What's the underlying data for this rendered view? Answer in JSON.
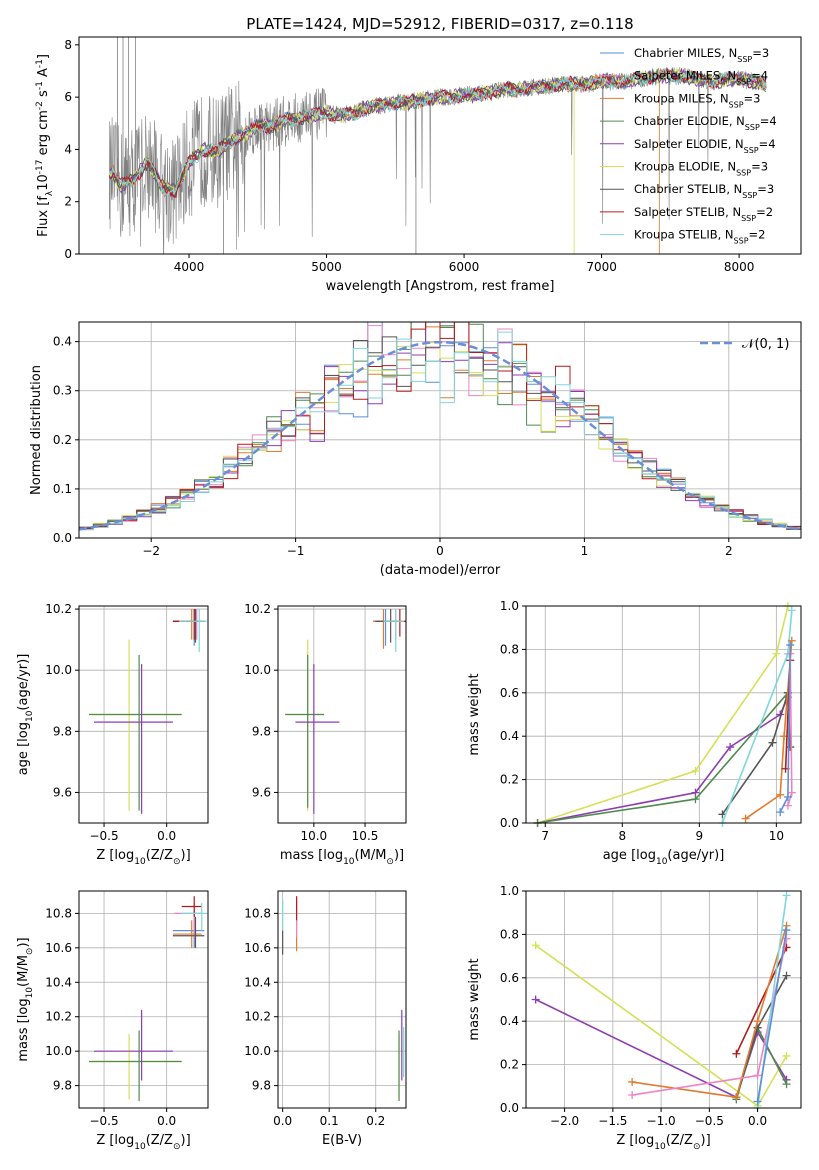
{
  "title": "PLATE=1424, MJD=52912, FIBERID=0317, z=0.118",
  "colors": {
    "Chabrier MILES": "#5b8fd9",
    "Salpeter MILES": "#ee82c3",
    "Kroupa MILES": "#e07b2f",
    "Chabrier ELODIE": "#4f8a4f",
    "Salpeter ELODIE": "#8e3db0",
    "Kroupa ELODIE": "#d4e157",
    "Chabrier STELIB": "#555555",
    "Salpeter STELIB": "#b01c1c",
    "Kroupa STELIB": "#7fd6dc",
    "data": "#808080",
    "normal": "#6b8fd6"
  },
  "legend_spectrum": [
    {
      "model": "Chabrier MILES",
      "n": "3"
    },
    {
      "model": "Salpeter MILES",
      "n": "4"
    },
    {
      "model": "Kroupa MILES",
      "n": "3"
    },
    {
      "model": "Chabrier ELODIE",
      "n": "4"
    },
    {
      "model": "Salpeter ELODIE",
      "n": "4"
    },
    {
      "model": "Kroupa ELODIE",
      "n": "3"
    },
    {
      "model": "Chabrier STELIB",
      "n": "3"
    },
    {
      "model": "Salpeter STELIB",
      "n": "2"
    },
    {
      "model": "Kroupa STELIB",
      "n": "2"
    }
  ],
  "chart_data": [
    {
      "id": "spectrum",
      "type": "line",
      "xlabel": "wavelength [Angstrom, rest frame]",
      "ylabel": "Flux [f$_{\\lambda}$10$^{-17}$ erg cm$^{-2}$ s$^{-1}$ A$^{-1}$]",
      "xlim": [
        3200,
        8450
      ],
      "ylim": [
        0,
        8.3
      ],
      "xticks": [
        4000,
        5000,
        6000,
        7000,
        8000
      ],
      "yticks": [
        0,
        2,
        4,
        6,
        8
      ],
      "model_continuum": [
        [
          3450,
          3.1
        ],
        [
          3500,
          2.6
        ],
        [
          3600,
          2.9
        ],
        [
          3700,
          3.5
        ],
        [
          3800,
          2.6
        ],
        [
          3900,
          2.4
        ],
        [
          4000,
          3.5
        ],
        [
          4100,
          4.0
        ],
        [
          4200,
          3.9
        ],
        [
          4300,
          4.3
        ],
        [
          4400,
          4.6
        ],
        [
          4500,
          4.9
        ],
        [
          4600,
          4.9
        ],
        [
          4700,
          5.1
        ],
        [
          4800,
          5.2
        ],
        [
          4900,
          5.3
        ],
        [
          5000,
          5.4
        ],
        [
          5100,
          5.3
        ],
        [
          5200,
          5.4
        ],
        [
          5300,
          5.6
        ],
        [
          5400,
          5.7
        ],
        [
          5500,
          5.8
        ],
        [
          5600,
          5.8
        ],
        [
          5700,
          5.9
        ],
        [
          5800,
          6.0
        ],
        [
          5900,
          6.0
        ],
        [
          6000,
          6.1
        ],
        [
          6100,
          6.1
        ],
        [
          6200,
          6.2
        ],
        [
          6300,
          6.3
        ],
        [
          6400,
          6.3
        ],
        [
          6500,
          6.4
        ],
        [
          6600,
          6.4
        ],
        [
          6700,
          6.5
        ],
        [
          6800,
          6.5
        ],
        [
          6900,
          6.5
        ],
        [
          7000,
          6.6
        ],
        [
          7200,
          6.6
        ],
        [
          7400,
          6.8
        ],
        [
          7600,
          6.8
        ],
        [
          7800,
          6.6
        ],
        [
          8000,
          6.7
        ],
        [
          8200,
          6.5
        ]
      ]
    },
    {
      "id": "residuals",
      "type": "line",
      "xlabel": "(data-model)/error",
      "ylabel": "Normed distribution",
      "xlim": [
        -2.5,
        2.5
      ],
      "ylim": [
        0,
        0.44
      ],
      "xticks": [
        -2,
        -1,
        0,
        1,
        2
      ],
      "yticks": [
        0.0,
        0.1,
        0.2,
        0.3,
        0.4
      ],
      "legend": "$\\mathcal{N}(0,1)$"
    },
    {
      "id": "age-vs-Z",
      "type": "scatter",
      "xlabel": "Z [log$_{10}$(Z/Z$_\\odot$)]",
      "ylabel": "age  [log$_{10}$(age/yr)]",
      "xlim": [
        -0.7,
        0.33
      ],
      "ylim": [
        9.5,
        10.21
      ],
      "xticks": [
        -0.5,
        0.0
      ],
      "yticks": [
        9.6,
        9.8,
        10.0,
        10.2
      ],
      "points": [
        {
          "model": "Kroupa ELODIE",
          "x": -0.3,
          "y": 9.855,
          "xe": [
            -0.62,
            0.12
          ],
          "ye": [
            9.54,
            10.1
          ]
        },
        {
          "model": "Chabrier ELODIE",
          "x": -0.22,
          "y": 9.855,
          "xe": [
            -0.62,
            0.12
          ],
          "ye": [
            9.54,
            10.05
          ]
        },
        {
          "model": "Salpeter ELODIE",
          "x": -0.2,
          "y": 9.83,
          "xe": [
            -0.58,
            0.05
          ],
          "ye": [
            9.53,
            10.02
          ]
        },
        {
          "model": "Chabrier MILES",
          "x": 0.22,
          "y": 10.16,
          "xe": [
            0.05,
            0.3
          ],
          "ye": [
            10.08,
            10.2
          ]
        },
        {
          "model": "Salpeter MILES",
          "x": 0.24,
          "y": 10.16,
          "xe": [
            0.08,
            0.3
          ],
          "ye": [
            10.1,
            10.2
          ]
        },
        {
          "model": "Kroupa MILES",
          "x": 0.2,
          "y": 10.16,
          "xe": [
            0.05,
            0.28
          ],
          "ye": [
            10.1,
            10.2
          ]
        },
        {
          "model": "Chabrier STELIB",
          "x": 0.23,
          "y": 10.16,
          "xe": [
            0.05,
            0.3
          ],
          "ye": [
            10.09,
            10.2
          ]
        },
        {
          "model": "Salpeter STELIB",
          "x": 0.22,
          "y": 10.16,
          "xe": [
            0.05,
            0.28
          ],
          "ye": [
            10.1,
            10.2
          ]
        },
        {
          "model": "Kroupa STELIB",
          "x": 0.26,
          "y": 10.16,
          "xe": [
            0.1,
            0.32
          ],
          "ye": [
            10.06,
            10.2
          ]
        }
      ]
    },
    {
      "id": "age-vs-mass",
      "type": "scatter",
      "xlabel": "mass [log$_{10}$(M/M$_\\odot$)]",
      "ylabel": "",
      "xlim": [
        9.65,
        10.9
      ],
      "ylim": [
        9.5,
        10.21
      ],
      "xticks": [
        10.0,
        10.5
      ],
      "yticks": [
        9.6,
        9.8,
        10.0,
        10.2
      ],
      "points": [
        {
          "model": "Kroupa ELODIE",
          "x": 9.94,
          "y": 9.855,
          "xe": [
            9.72,
            10.1
          ],
          "ye": [
            9.54,
            10.1
          ]
        },
        {
          "model": "Chabrier ELODIE",
          "x": 9.94,
          "y": 9.855,
          "xe": [
            9.72,
            10.1
          ],
          "ye": [
            9.55,
            10.05
          ]
        },
        {
          "model": "Salpeter ELODIE",
          "x": 10.0,
          "y": 9.83,
          "xe": [
            9.82,
            10.25
          ],
          "ye": [
            9.53,
            10.02
          ]
        },
        {
          "model": "Chabrier MILES",
          "x": 10.7,
          "y": 10.16,
          "xe": [
            10.58,
            10.82
          ],
          "ye": [
            10.08,
            10.2
          ]
        },
        {
          "model": "Salpeter MILES",
          "x": 10.8,
          "y": 10.16,
          "xe": [
            10.6,
            10.85
          ],
          "ye": [
            10.1,
            10.2
          ]
        },
        {
          "model": "Kroupa MILES",
          "x": 10.68,
          "y": 10.16,
          "xe": [
            10.58,
            10.75
          ],
          "ye": [
            10.07,
            10.2
          ]
        },
        {
          "model": "Chabrier STELIB",
          "x": 10.75,
          "y": 10.16,
          "xe": [
            10.6,
            10.8
          ],
          "ye": [
            10.09,
            10.2
          ]
        },
        {
          "model": "Salpeter STELIB",
          "x": 10.84,
          "y": 10.16,
          "xe": [
            10.72,
            10.9
          ],
          "ye": [
            10.11,
            10.2
          ]
        },
        {
          "model": "Kroupa STELIB",
          "x": 10.8,
          "y": 10.16,
          "xe": [
            10.68,
            10.88
          ],
          "ye": [
            10.06,
            10.2
          ]
        }
      ]
    },
    {
      "id": "weight-vs-age",
      "type": "line",
      "xlabel": "age  [log$_{10}$(age/yr)]",
      "ylabel": "mass weight",
      "xlim": [
        6.75,
        10.32
      ],
      "ylim": [
        0,
        1.0
      ],
      "xticks": [
        7,
        8,
        9,
        10
      ],
      "yticks": [
        0.0,
        0.2,
        0.4,
        0.6,
        0.8,
        1.0
      ],
      "series": [
        {
          "model": "Kroupa ELODIE",
          "x": [
            6.9,
            8.95,
            10.0,
            10.15
          ],
          "y": [
            0.0,
            0.24,
            0.78,
            1.0
          ]
        },
        {
          "model": "Salpeter ELODIE",
          "x": [
            6.9,
            8.95,
            9.4,
            10.05,
            10.15
          ],
          "y": [
            0.0,
            0.14,
            0.35,
            0.5,
            0.58
          ]
        },
        {
          "model": "Chabrier ELODIE",
          "x": [
            6.9,
            8.95,
            10.15
          ],
          "y": [
            0.0,
            0.11,
            0.6
          ]
        },
        {
          "model": "Chabrier STELIB",
          "x": [
            9.3,
            9.95,
            10.15,
            10.18
          ],
          "y": [
            0.04,
            0.37,
            0.6,
            0.35
          ]
        },
        {
          "model": "Kroupa STELIB",
          "x": [
            9.3,
            10.15,
            10.2
          ],
          "y": [
            0.0,
            0.78,
            0.98
          ]
        },
        {
          "model": "Kroupa MILES",
          "x": [
            9.6,
            10.05,
            10.1,
            10.2
          ],
          "y": [
            0.02,
            0.13,
            0.4,
            0.84
          ]
        },
        {
          "model": "Salpeter STELIB",
          "x": [
            10.12,
            10.18
          ],
          "y": [
            0.25,
            0.75
          ]
        },
        {
          "model": "Salpeter MILES",
          "x": [
            10.15,
            10.2,
            10.18
          ],
          "y": [
            0.08,
            0.14,
            0.78
          ]
        },
        {
          "model": "Chabrier MILES",
          "x": [
            10.05,
            10.15,
            10.18
          ],
          "y": [
            0.05,
            0.12,
            0.82
          ]
        }
      ]
    },
    {
      "id": "mass-vs-Z",
      "type": "scatter",
      "xlabel": "Z [log$_{10}$(Z/Z$_\\odot$)]",
      "ylabel": "mass [log$_{10}$(M/M$_\\odot$)]",
      "xlim": [
        -0.7,
        0.33
      ],
      "ylim": [
        9.67,
        10.93
      ],
      "xticks": [
        -0.5,
        0.0
      ],
      "yticks": [
        9.8,
        10.0,
        10.2,
        10.4,
        10.6,
        10.8
      ],
      "points": [
        {
          "model": "Kroupa ELODIE",
          "x": -0.3,
          "y": 9.94,
          "xe": [
            -0.62,
            0.12
          ],
          "ye": [
            9.72,
            10.1
          ]
        },
        {
          "model": "Chabrier ELODIE",
          "x": -0.22,
          "y": 9.94,
          "xe": [
            -0.62,
            0.12
          ],
          "ye": [
            9.71,
            10.12
          ]
        },
        {
          "model": "Salpeter ELODIE",
          "x": -0.2,
          "y": 10.0,
          "xe": [
            -0.58,
            0.05
          ],
          "ye": [
            9.83,
            10.24
          ]
        },
        {
          "model": "Chabrier MILES",
          "x": 0.22,
          "y": 10.7,
          "xe": [
            0.05,
            0.3
          ],
          "ye": [
            10.6,
            10.82
          ]
        },
        {
          "model": "Salpeter MILES",
          "x": 0.22,
          "y": 10.8,
          "xe": [
            0.06,
            0.28
          ],
          "ye": [
            10.66,
            10.86
          ]
        },
        {
          "model": "Kroupa MILES",
          "x": 0.2,
          "y": 10.68,
          "xe": [
            0.05,
            0.28
          ],
          "ye": [
            10.6,
            10.76
          ]
        },
        {
          "model": "Chabrier STELIB",
          "x": 0.23,
          "y": 10.67,
          "xe": [
            0.05,
            0.3
          ],
          "ye": [
            10.6,
            10.78
          ]
        },
        {
          "model": "Salpeter STELIB",
          "x": 0.22,
          "y": 10.84,
          "xe": [
            0.12,
            0.28
          ],
          "ye": [
            10.78,
            10.9
          ]
        },
        {
          "model": "Kroupa STELIB",
          "x": 0.28,
          "y": 10.8,
          "xe": [
            0.12,
            0.32
          ],
          "ye": [
            10.7,
            10.86
          ]
        }
      ]
    },
    {
      "id": "mass-vs-EBV",
      "type": "scatter",
      "xlabel": "E(B-V)",
      "ylabel": "",
      "xlim": [
        -0.01,
        0.265
      ],
      "ylim": [
        9.67,
        10.93
      ],
      "xticks": [
        0.0,
        0.1,
        0.2
      ],
      "yticks": [
        9.8,
        10.0,
        10.2,
        10.4,
        10.6,
        10.8
      ],
      "points": [
        {
          "model": "Chabrier STELIB",
          "x": 0.0,
          "y": 10.63,
          "ye": [
            10.56,
            10.7
          ]
        },
        {
          "model": "Kroupa STELIB",
          "x": 0.0,
          "y": 10.78,
          "ye": [
            10.7,
            10.88
          ]
        },
        {
          "model": "Kroupa MILES",
          "x": 0.03,
          "y": 10.68,
          "ye": [
            10.58,
            10.76
          ]
        },
        {
          "model": "Salpeter MILES",
          "x": 0.03,
          "y": 10.8,
          "ye": [
            10.66,
            10.88
          ]
        },
        {
          "model": "Salpeter STELIB",
          "x": 0.03,
          "y": 10.84,
          "ye": [
            10.76,
            10.9
          ]
        },
        {
          "model": "Kroupa ELODIE",
          "x": 0.25,
          "y": 9.94,
          "ye": [
            9.72,
            10.1
          ]
        },
        {
          "model": "Chabrier ELODIE",
          "x": 0.25,
          "y": 9.94,
          "ye": [
            9.71,
            10.12
          ]
        },
        {
          "model": "Salpeter ELODIE",
          "x": 0.256,
          "y": 10.0,
          "ye": [
            9.83,
            10.24
          ]
        },
        {
          "model": "Kroupa STELIB",
          "x": 0.26,
          "y": 10.0,
          "ye": [
            9.85,
            10.14
          ]
        }
      ]
    },
    {
      "id": "weight-vs-Z",
      "type": "line",
      "xlabel": "Z [log$_{10}$(Z/Z$_\\odot$)]",
      "ylabel": "mass weight",
      "xlim": [
        -2.4,
        0.45
      ],
      "ylim": [
        0,
        1.0
      ],
      "xticks": [
        -2.0,
        -1.5,
        -1.0,
        -0.5,
        0.0
      ],
      "yticks": [
        0.0,
        0.2,
        0.4,
        0.6,
        0.8,
        1.0
      ],
      "series": [
        {
          "model": "Kroupa ELODIE",
          "x": [
            -2.3,
            0.0,
            0.3
          ],
          "y": [
            0.75,
            0.01,
            0.24
          ]
        },
        {
          "model": "Salpeter ELODIE",
          "x": [
            -2.3,
            -0.22,
            0.0,
            0.3
          ],
          "y": [
            0.5,
            0.05,
            0.35,
            0.13
          ]
        },
        {
          "model": "Chabrier ELODIE",
          "x": [
            -0.22,
            0.0,
            0.3
          ],
          "y": [
            0.04,
            0.37,
            0.11
          ]
        },
        {
          "model": "Chabrier STELIB",
          "x": [
            -0.22,
            0.0,
            0.3
          ],
          "y": [
            0.05,
            0.37,
            0.61
          ]
        },
        {
          "model": "Salpeter STELIB",
          "x": [
            -0.22,
            0.3
          ],
          "y": [
            0.25,
            0.74
          ]
        },
        {
          "model": "Kroupa MILES",
          "x": [
            -1.3,
            -0.22,
            0.0,
            0.3
          ],
          "y": [
            0.12,
            0.05,
            0.4,
            0.84
          ]
        },
        {
          "model": "Salpeter MILES",
          "x": [
            -1.3,
            0.0,
            0.3
          ],
          "y": [
            0.06,
            0.15,
            0.78
          ]
        },
        {
          "model": "Kroupa STELIB",
          "x": [
            0.0,
            0.3
          ],
          "y": [
            0.0,
            0.98
          ]
        },
        {
          "model": "Chabrier MILES",
          "x": [
            0.0,
            0.3
          ],
          "y": [
            0.03,
            0.82
          ]
        }
      ]
    }
  ]
}
